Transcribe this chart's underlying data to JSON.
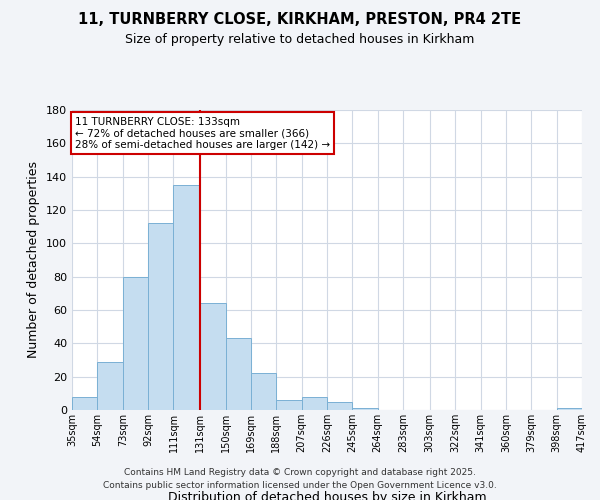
{
  "title": "11, TURNBERRY CLOSE, KIRKHAM, PRESTON, PR4 2TE",
  "subtitle": "Size of property relative to detached houses in Kirkham",
  "xlabel": "Distribution of detached houses by size in Kirkham",
  "ylabel": "Number of detached properties",
  "bar_color": "#c5ddf0",
  "bar_edge_color": "#7ab0d4",
  "annotation_box_color": "#ffffff",
  "annotation_box_edge": "#cc0000",
  "vline_color": "#cc0000",
  "vline_x": 131,
  "bin_edges": [
    35,
    54,
    73,
    92,
    111,
    131,
    150,
    169,
    188,
    207,
    226,
    245,
    264,
    283,
    303,
    322,
    341,
    360,
    379,
    398,
    417
  ],
  "bin_labels": [
    "35sqm",
    "54sqm",
    "73sqm",
    "92sqm",
    "111sqm",
    "131sqm",
    "150sqm",
    "169sqm",
    "188sqm",
    "207sqm",
    "226sqm",
    "245sqm",
    "264sqm",
    "283sqm",
    "303sqm",
    "322sqm",
    "341sqm",
    "360sqm",
    "379sqm",
    "398sqm",
    "417sqm"
  ],
  "bar_heights": [
    8,
    29,
    80,
    112,
    135,
    64,
    43,
    22,
    6,
    8,
    5,
    1,
    0,
    0,
    0,
    0,
    0,
    0,
    0,
    1
  ],
  "ylim": [
    0,
    180
  ],
  "yticks": [
    0,
    20,
    40,
    60,
    80,
    100,
    120,
    140,
    160,
    180
  ],
  "annotation_title": "11 TURNBERRY CLOSE: 133sqm",
  "annotation_line1": "← 72% of detached houses are smaller (366)",
  "annotation_line2": "28% of semi-detached houses are larger (142) →",
  "footer1": "Contains HM Land Registry data © Crown copyright and database right 2025.",
  "footer2": "Contains public sector information licensed under the Open Government Licence v3.0.",
  "background_color": "#f2f4f8",
  "plot_bg_color": "#ffffff",
  "grid_color": "#d0d8e4"
}
